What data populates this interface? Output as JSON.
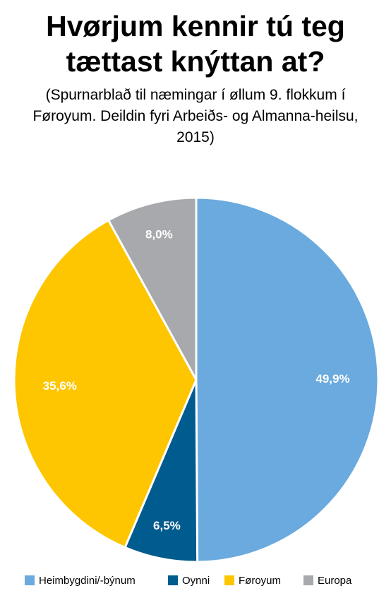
{
  "chart_data": {
    "type": "pie",
    "title": "Hvørjum kennir tú teg tættast knýttan at?",
    "subtitle": "(Spurnarblað til næmingar í øllum 9. flokkum í Føroyum. Deildin fyri Arbeiðs- og Almanna-heilsu, 2015)",
    "categories": [
      "Heimbygdini/-býnum",
      "Oynni",
      "Føroyum",
      "Europa"
    ],
    "values": [
      49.9,
      6.5,
      35.6,
      8.0
    ],
    "value_labels": [
      "49,9%",
      "6,5%",
      "35,6%",
      "8,0%"
    ],
    "colors": [
      "#6aaade",
      "#005b8e",
      "#fdc600",
      "#a7a9ac"
    ],
    "legend": "bottom"
  }
}
